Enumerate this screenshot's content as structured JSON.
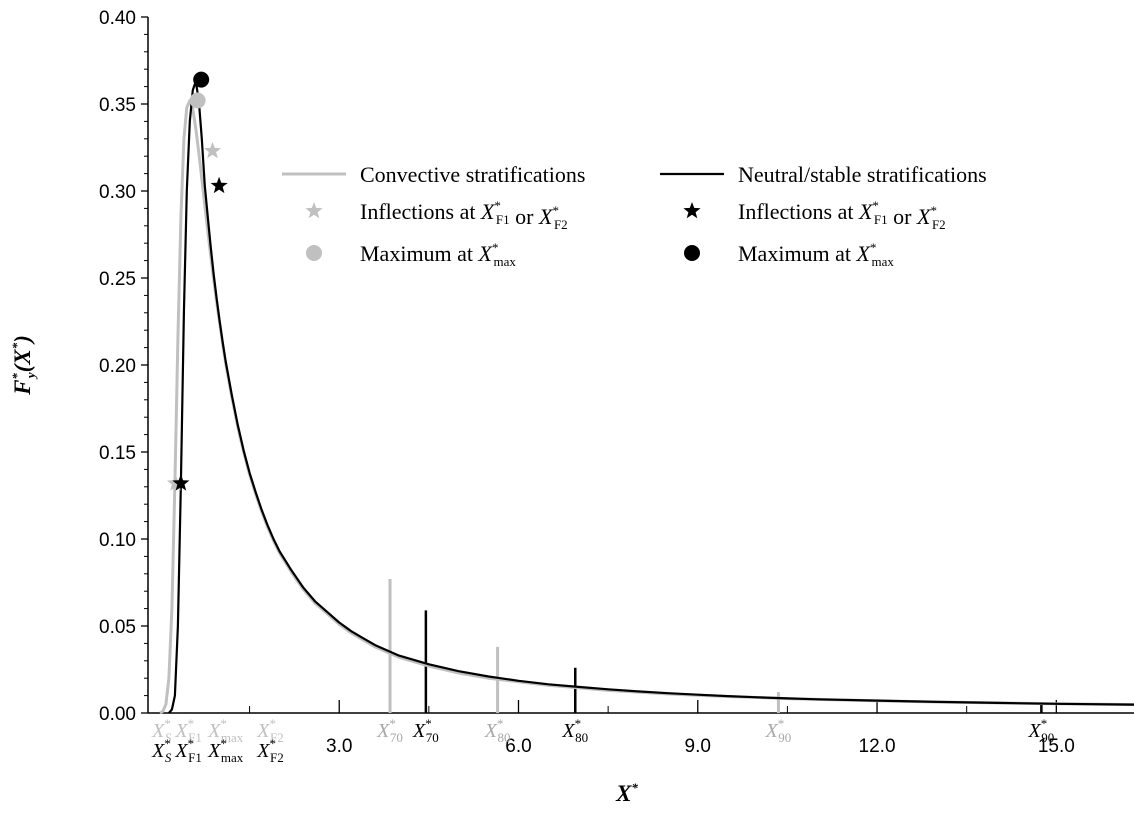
{
  "colors": {
    "convective": "#c0c0c0",
    "neutral": "#000000",
    "axis": "#000000"
  },
  "chart_data": {
    "type": "line",
    "xlabel": "X*",
    "ylabel": "F*y(X*)",
    "xlim": [
      -0.2,
      16.3
    ],
    "ylim": [
      0.0,
      0.4
    ],
    "grid": false,
    "legend_position": "top-right",
    "y_ticks": [
      "0.00",
      "0.05",
      "0.10",
      "0.15",
      "0.20",
      "0.25",
      "0.30",
      "0.35",
      "0.40"
    ],
    "y_tick_values": [
      0.0,
      0.05,
      0.1,
      0.15,
      0.2,
      0.25,
      0.3,
      0.35,
      0.4
    ],
    "x_ticks": [
      "3.0",
      "6.0",
      "9.0",
      "12.0",
      "15.0"
    ],
    "x_tick_values": [
      3.0,
      6.0,
      9.0,
      12.0,
      15.0
    ],
    "series": [
      {
        "name": "Convective stratifications",
        "color": "#c0c0c0",
        "x": [
          0.0,
          0.05,
          0.1,
          0.15,
          0.2,
          0.25,
          0.3,
          0.35,
          0.4,
          0.45,
          0.5,
          0.55,
          0.6,
          0.65,
          0.7,
          0.75,
          0.8,
          0.85,
          0.9,
          0.95,
          1.0,
          1.05,
          1.1,
          1.2,
          1.3,
          1.4,
          1.5,
          1.6,
          1.7,
          1.8,
          1.9,
          2.0,
          2.2,
          2.4,
          2.6,
          2.8,
          3.0,
          3.2,
          3.4,
          3.6,
          3.8,
          4.0,
          4.5,
          5.0,
          5.5,
          6.0,
          6.5,
          7.0,
          7.5,
          8.0,
          8.5,
          9.0,
          9.5,
          10.0,
          10.5,
          11.0,
          12.0,
          13.0,
          14.0,
          15.0,
          16.3
        ],
        "y": [
          0.0,
          0.001,
          0.005,
          0.02,
          0.06,
          0.132,
          0.215,
          0.285,
          0.33,
          0.348,
          0.352,
          0.347,
          0.336,
          0.322,
          0.307,
          0.292,
          0.277,
          0.263,
          0.249,
          0.236,
          0.224,
          0.212,
          0.201,
          0.182,
          0.165,
          0.15,
          0.137,
          0.126,
          0.116,
          0.107,
          0.099,
          0.092,
          0.081,
          0.071,
          0.063,
          0.057,
          0.051,
          0.046,
          0.042,
          0.038,
          0.035,
          0.032,
          0.027,
          0.023,
          0.02,
          0.018,
          0.016,
          0.0145,
          0.013,
          0.012,
          0.011,
          0.0102,
          0.0095,
          0.0089,
          0.0083,
          0.0078,
          0.007,
          0.0063,
          0.0058,
          0.0053,
          0.0048
        ]
      },
      {
        "name": "Neutral/stable stratifications",
        "color": "#000000",
        "x": [
          0.15,
          0.2,
          0.25,
          0.3,
          0.35,
          0.4,
          0.45,
          0.5,
          0.55,
          0.6,
          0.65,
          0.7,
          0.75,
          0.8,
          0.85,
          0.9,
          0.95,
          1.0,
          1.05,
          1.1,
          1.2,
          1.3,
          1.4,
          1.5,
          1.6,
          1.7,
          1.8,
          1.9,
          2.0,
          2.2,
          2.4,
          2.6,
          2.8,
          3.0,
          3.2,
          3.4,
          3.6,
          3.8,
          4.0,
          4.5,
          5.0,
          5.5,
          6.0,
          6.5,
          7.0,
          7.5,
          8.0,
          8.5,
          9.0,
          9.5,
          10.0,
          10.5,
          11.0,
          12.0,
          13.0,
          14.0,
          15.0,
          16.3
        ],
        "y": [
          0.0,
          0.002,
          0.01,
          0.05,
          0.132,
          0.23,
          0.3,
          0.34,
          0.358,
          0.363,
          0.352,
          0.33,
          0.303,
          0.285,
          0.268,
          0.252,
          0.238,
          0.225,
          0.213,
          0.202,
          0.183,
          0.166,
          0.151,
          0.138,
          0.127,
          0.117,
          0.108,
          0.1,
          0.093,
          0.082,
          0.072,
          0.064,
          0.058,
          0.052,
          0.047,
          0.043,
          0.039,
          0.036,
          0.033,
          0.028,
          0.024,
          0.021,
          0.0185,
          0.0165,
          0.015,
          0.0136,
          0.0124,
          0.0114,
          0.0105,
          0.0097,
          0.009,
          0.0084,
          0.0079,
          0.0071,
          0.0064,
          0.0058,
          0.0053,
          0.0048
        ]
      }
    ],
    "markers": {
      "convective_inflections": [
        {
          "x": 0.26,
          "y": 0.132
        },
        {
          "x": 0.88,
          "y": 0.323
        }
      ],
      "convective_maximum": {
        "x": 0.63,
        "y": 0.352
      },
      "neutral_inflections": [
        {
          "x": 0.35,
          "y": 0.132
        },
        {
          "x": 0.99,
          "y": 0.303
        }
      ],
      "neutral_maximum": {
        "x": 0.69,
        "y": 0.364
      }
    },
    "percentile_lines": {
      "convective": [
        {
          "x": 3.85,
          "y": 0.077,
          "label": "70"
        },
        {
          "x": 5.65,
          "y": 0.038,
          "label": "80"
        },
        {
          "x": 10.35,
          "y": 0.012,
          "label": "90"
        }
      ],
      "neutral": [
        {
          "x": 4.45,
          "y": 0.059,
          "label": "70"
        },
        {
          "x": 6.95,
          "y": 0.026,
          "label": "80"
        },
        {
          "x": 14.75,
          "y": 0.005,
          "label": "90"
        }
      ]
    },
    "x_point_labels": {
      "convective": [
        {
          "sym": "X",
          "sup": "*",
          "sub": "S",
          "sub_italic": true,
          "x": 0.03
        },
        {
          "sym": "X",
          "sup": "*",
          "sub": "F1",
          "sub_italic": false,
          "x": 0.48
        },
        {
          "sym": "X",
          "sup": "*",
          "sub": "max",
          "sub_italic": false,
          "x": 1.1
        },
        {
          "sym": "X",
          "sup": "*",
          "sub": "F2",
          "sub_italic": false,
          "x": 1.85
        }
      ],
      "neutral": [
        {
          "sym": "X",
          "sup": "*",
          "sub": "S",
          "sub_italic": true,
          "x": 0.03
        },
        {
          "sym": "X",
          "sup": "*",
          "sub": "F1",
          "sub_italic": false,
          "x": 0.48
        },
        {
          "sym": "X",
          "sup": "*",
          "sub": "max",
          "sub_italic": false,
          "x": 1.1
        },
        {
          "sym": "X",
          "sup": "*",
          "sub": "F2",
          "sub_italic": false,
          "x": 1.85
        }
      ]
    },
    "legend": {
      "convective_line": "Convective stratifications",
      "neutral_line": "Neutral/stable stratifications",
      "inflections_prefix": "Inflections at ",
      "inflections_or": " or ",
      "maximum_prefix": "Maximum at ",
      "x_symbol": "X",
      "star": "*",
      "sub_f1": "F1",
      "sub_f2": "F2",
      "sub_max": "max"
    },
    "axis_titles": {
      "x_main": "X",
      "x_sup": "*",
      "y_F": "F",
      "y_sup": "*",
      "y_sub": "y",
      "y_open": "(",
      "y_X": "X",
      "y_close": ")"
    }
  }
}
